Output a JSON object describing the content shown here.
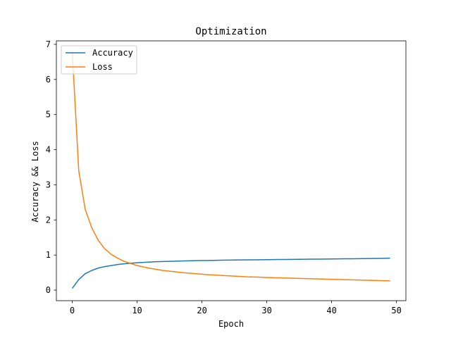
{
  "chart_data": {
    "type": "line",
    "title": "Optimization",
    "xlabel": "Epoch",
    "ylabel": "Accuracy && Loss",
    "xlim": [
      -2.45,
      51.45
    ],
    "ylim": [
      -0.3,
      7.1
    ],
    "xticks": [
      0,
      10,
      20,
      30,
      40,
      50
    ],
    "yticks": [
      0,
      1,
      2,
      3,
      4,
      5,
      6,
      7
    ],
    "grid": false,
    "legend_position": "top-left",
    "series": [
      {
        "name": "Accuracy",
        "color": "#1f77b4",
        "x": [
          0,
          1,
          2,
          3,
          4,
          5,
          6,
          7,
          8,
          9,
          10,
          11,
          12,
          13,
          14,
          15,
          16,
          17,
          18,
          19,
          20,
          21,
          22,
          23,
          24,
          25,
          26,
          27,
          28,
          29,
          30,
          31,
          32,
          33,
          34,
          35,
          36,
          37,
          38,
          39,
          40,
          41,
          42,
          43,
          44,
          45,
          46,
          47,
          48,
          49
        ],
        "values": [
          0.05,
          0.3,
          0.47,
          0.56,
          0.63,
          0.67,
          0.7,
          0.73,
          0.75,
          0.765,
          0.78,
          0.79,
          0.8,
          0.81,
          0.815,
          0.82,
          0.825,
          0.83,
          0.835,
          0.84,
          0.843,
          0.846,
          0.849,
          0.852,
          0.855,
          0.858,
          0.86,
          0.862,
          0.864,
          0.866,
          0.868,
          0.87,
          0.872,
          0.874,
          0.876,
          0.878,
          0.88,
          0.882,
          0.884,
          0.886,
          0.888,
          0.89,
          0.892,
          0.894,
          0.896,
          0.898,
          0.9,
          0.903,
          0.906,
          0.91
        ]
      },
      {
        "name": "Loss",
        "color": "#ff7f0e",
        "x": [
          0,
          1,
          2,
          3,
          4,
          5,
          6,
          7,
          8,
          9,
          10,
          11,
          12,
          13,
          14,
          15,
          16,
          17,
          18,
          19,
          20,
          21,
          22,
          23,
          24,
          25,
          26,
          27,
          28,
          29,
          30,
          31,
          32,
          33,
          34,
          35,
          36,
          37,
          38,
          39,
          40,
          41,
          42,
          43,
          44,
          45,
          46,
          47,
          48,
          49
        ],
        "values": [
          6.8,
          3.4,
          2.3,
          1.78,
          1.42,
          1.18,
          1.02,
          0.91,
          0.82,
          0.76,
          0.7,
          0.66,
          0.62,
          0.59,
          0.56,
          0.54,
          0.52,
          0.5,
          0.485,
          0.47,
          0.455,
          0.44,
          0.43,
          0.42,
          0.41,
          0.4,
          0.39,
          0.38,
          0.375,
          0.37,
          0.36,
          0.355,
          0.35,
          0.345,
          0.34,
          0.335,
          0.33,
          0.325,
          0.32,
          0.315,
          0.31,
          0.305,
          0.3,
          0.295,
          0.29,
          0.285,
          0.28,
          0.275,
          0.27,
          0.265
        ]
      }
    ]
  }
}
